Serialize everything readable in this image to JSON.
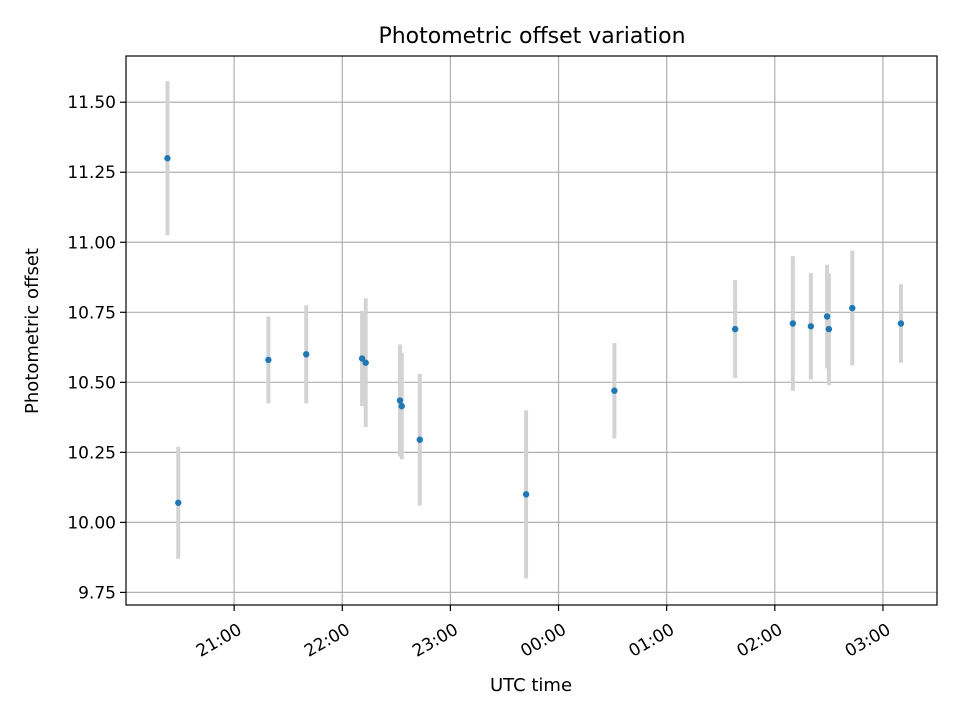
{
  "chart_data": {
    "type": "scatter",
    "title": "Photometric offset variation",
    "xlabel": "UTC time",
    "ylabel": "Photometric offset",
    "ylim": [
      9.705,
      11.665
    ],
    "xlim": [
      "20:00",
      "03:30"
    ],
    "ytick_values": [
      9.75,
      10.0,
      10.25,
      10.5,
      10.75,
      11.0,
      11.25,
      11.5
    ],
    "ytick_labels": [
      "9.75",
      "10.00",
      "10.25",
      "10.50",
      "10.75",
      "11.00",
      "11.25",
      "11.50"
    ],
    "xtick_values": [
      "21:00",
      "22:00",
      "23:00",
      "00:00",
      "01:00",
      "02:00",
      "03:00"
    ],
    "xtick_labels": [
      "21:00",
      "22:00",
      "23:00",
      "00:00",
      "01:00",
      "02:00",
      "03:00"
    ],
    "grid": true,
    "colors": {
      "point": "#1f77b4",
      "errorbar": "#d3d3d3",
      "grid": "#b0b0b0"
    },
    "points": [
      {
        "x": "20:23",
        "y": 11.3,
        "err": 0.275
      },
      {
        "x": "20:29",
        "y": 10.07,
        "err": 0.2
      },
      {
        "x": "21:19",
        "y": 10.58,
        "err": 0.155
      },
      {
        "x": "21:40",
        "y": 10.6,
        "err": 0.175
      },
      {
        "x": "22:11",
        "y": 10.585,
        "err": 0.17
      },
      {
        "x": "22:13",
        "y": 10.57,
        "err": 0.23
      },
      {
        "x": "22:32",
        "y": 10.435,
        "err": 0.2
      },
      {
        "x": "22:33",
        "y": 10.415,
        "err": 0.19
      },
      {
        "x": "22:43",
        "y": 10.295,
        "err": 0.235
      },
      {
        "x": "23:42",
        "y": 10.1,
        "err": 0.3
      },
      {
        "x": "00:31",
        "y": 10.47,
        "err": 0.17
      },
      {
        "x": "01:38",
        "y": 10.69,
        "err": 0.175
      },
      {
        "x": "02:10",
        "y": 10.71,
        "err": 0.24
      },
      {
        "x": "02:20",
        "y": 10.7,
        "err": 0.19
      },
      {
        "x": "02:29",
        "y": 10.735,
        "err": 0.185
      },
      {
        "x": "02:30",
        "y": 10.69,
        "err": 0.2
      },
      {
        "x": "02:43",
        "y": 10.765,
        "err": 0.205
      },
      {
        "x": "03:10",
        "y": 10.71,
        "err": 0.14
      }
    ]
  }
}
